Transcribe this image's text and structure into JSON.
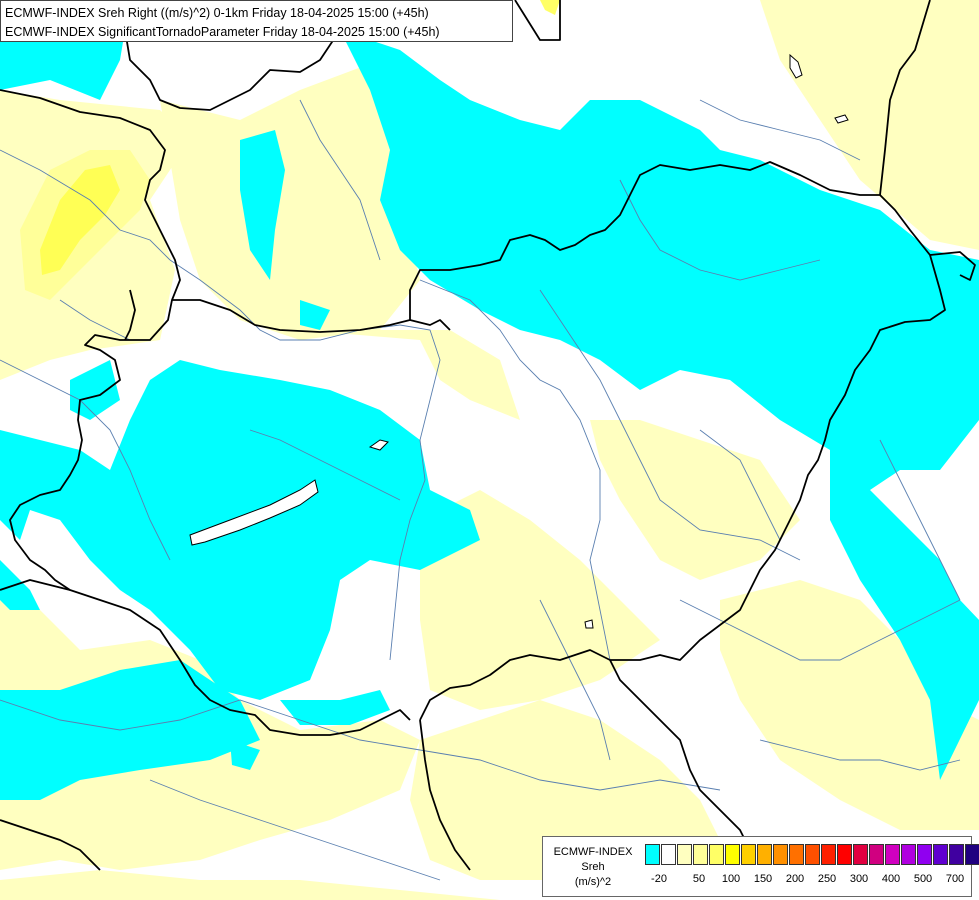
{
  "header": {
    "line1": "ECMWF-INDEX Sreh Right ((m/s)^2) 0-1km Friday 18-04-2025 15:00 (+45h)",
    "line2": "ECMWF-INDEX SignificantTornadoParameter Friday 18-04-2025 15:00 (+45h)"
  },
  "legend": {
    "label_line1": "ECMWF-INDEX",
    "label_line2": "Sreh",
    "label_line3": "(m/s)^2",
    "colors": [
      "#00ffff",
      "#ffffff",
      "#ffffc0",
      "#ffff99",
      "#ffff66",
      "#ffff00",
      "#ffd000",
      "#ffb000",
      "#ff9000",
      "#ff7000",
      "#ff5000",
      "#ff2000",
      "#ff0000",
      "#e00040",
      "#d00080",
      "#d000c0",
      "#b000e0",
      "#9000f0",
      "#6000d0",
      "#4000a0",
      "#200080"
    ],
    "ticks": [
      "-20",
      "50",
      "100",
      "150",
      "200",
      "250",
      "300",
      "400",
      "500",
      "700"
    ]
  },
  "map_colors": {
    "cyan": "#00ffff",
    "white": "#ffffff",
    "pale_yellow": "#ffffc0",
    "yellow": "#ffff66",
    "bright_yellow": "#ffff00",
    "border": "#000000",
    "river": "#5a7fb0"
  }
}
